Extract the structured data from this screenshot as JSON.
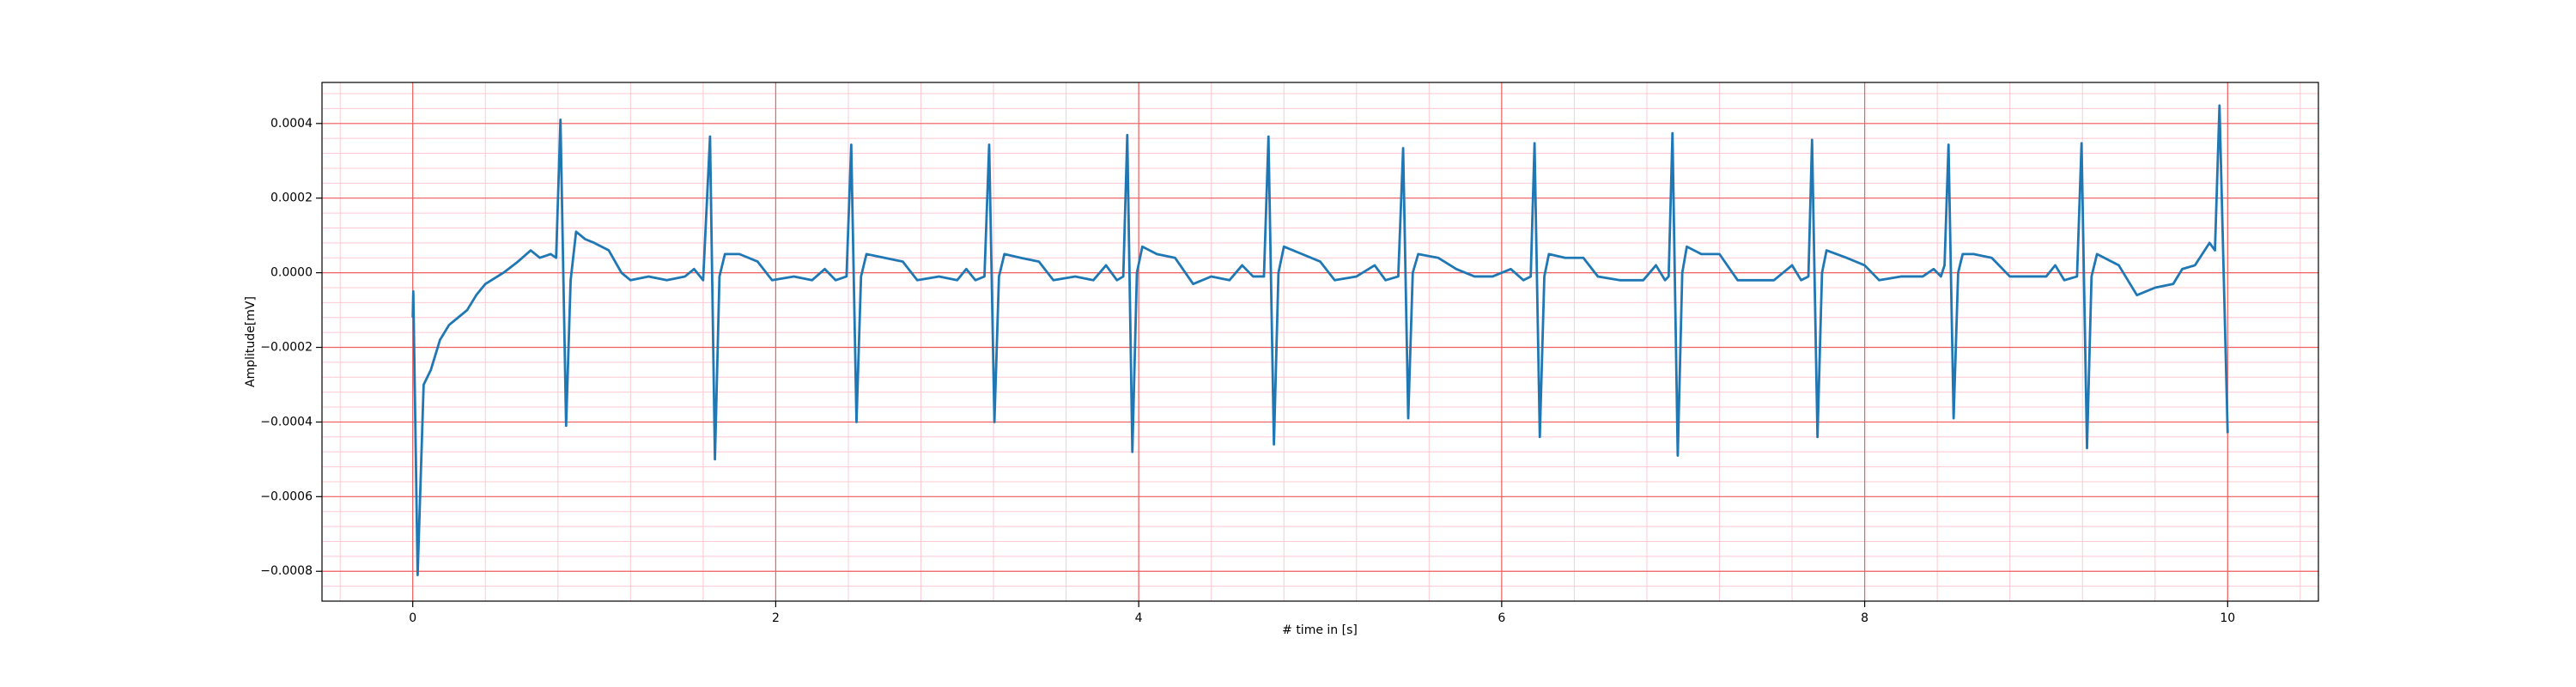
{
  "chart_data": {
    "type": "line",
    "xlabel": "# time in [s]",
    "ylabel": "Amplitude[mV]",
    "xlim": [
      -0.5,
      10.5
    ],
    "ylim": [
      -0.00088,
      0.00051
    ],
    "xticks": [
      0,
      2,
      4,
      6,
      8,
      10
    ],
    "yticks": [
      {
        "value": -0.0008,
        "label": "−0.0008"
      },
      {
        "value": -0.0006,
        "label": "−0.0006"
      },
      {
        "value": -0.0004,
        "label": "−0.0004"
      },
      {
        "value": -0.0002,
        "label": "−0.0002"
      },
      {
        "value": 0,
        "label": "0.0000"
      },
      0.0002,
      0.0004
    ],
    "grid": true,
    "grid_color": "#f06060",
    "minor_grid": true,
    "minor_grid_color": "#ffc8d2",
    "minor_per_major": 5,
    "series": [
      {
        "color": "#1f77b4",
        "x": [
          0,
          0.003,
          0.027,
          0.06,
          0.1,
          0.15,
          0.2,
          0.25,
          0.3,
          0.35,
          0.4,
          0.5,
          0.58,
          0.65,
          0.7,
          0.76,
          0.79,
          0.814,
          0.845,
          0.87,
          0.9,
          0.95,
          1.0,
          1.08,
          1.15,
          1.2,
          1.3,
          1.4,
          1.5,
          1.55,
          1.6,
          1.638,
          1.665,
          1.69,
          1.72,
          1.8,
          1.9,
          1.98,
          2.1,
          2.2,
          2.27,
          2.33,
          2.39,
          2.416,
          2.445,
          2.47,
          2.5,
          2.6,
          2.7,
          2.78,
          2.9,
          3.0,
          3.05,
          3.1,
          3.15,
          3.176,
          3.205,
          3.23,
          3.26,
          3.35,
          3.45,
          3.53,
          3.65,
          3.75,
          3.82,
          3.88,
          3.915,
          3.937,
          3.965,
          3.99,
          4.02,
          4.1,
          4.2,
          4.3,
          4.4,
          4.5,
          4.57,
          4.63,
          4.69,
          4.715,
          4.745,
          4.77,
          4.8,
          4.9,
          5.0,
          5.08,
          5.2,
          5.3,
          5.36,
          5.43,
          5.457,
          5.485,
          5.51,
          5.54,
          5.65,
          5.75,
          5.85,
          5.95,
          6.05,
          6.12,
          6.16,
          6.181,
          6.21,
          6.235,
          6.26,
          6.35,
          6.45,
          6.53,
          6.65,
          6.78,
          6.85,
          6.9,
          6.92,
          6.941,
          6.97,
          6.995,
          7.02,
          7.1,
          7.2,
          7.3,
          7.4,
          7.5,
          7.6,
          7.65,
          7.69,
          7.71,
          7.74,
          7.765,
          7.79,
          7.9,
          8.0,
          8.08,
          8.2,
          8.32,
          8.38,
          8.42,
          8.44,
          8.462,
          8.49,
          8.515,
          8.54,
          8.6,
          8.7,
          8.8,
          8.9,
          9.0,
          9.05,
          9.1,
          9.17,
          9.195,
          9.225,
          9.25,
          9.28,
          9.4,
          9.5,
          9.6,
          9.7,
          9.75,
          9.82,
          9.9,
          9.93,
          9.955,
          10.0
        ],
        "values": [
          -0.00012,
          -5e-05,
          -0.00081,
          -0.0003,
          -0.00026,
          -0.00018,
          -0.00014,
          -0.00012,
          -0.0001,
          -6e-05,
          -3e-05,
          0,
          3e-05,
          6e-05,
          4e-05,
          5e-05,
          4e-05,
          0.00041,
          -0.00041,
          -2e-05,
          0.00011,
          9e-05,
          8e-05,
          6e-05,
          0,
          -2e-05,
          -1e-05,
          -2e-05,
          -1e-05,
          1e-05,
          -2e-05,
          0.000365,
          -0.0005,
          -1e-05,
          5e-05,
          5e-05,
          3e-05,
          -2e-05,
          -1e-05,
          -2e-05,
          1e-05,
          -2e-05,
          -1e-05,
          0.000343,
          -0.0004,
          -1e-05,
          5e-05,
          4e-05,
          3e-05,
          -2e-05,
          -1e-05,
          -2e-05,
          1e-05,
          -2e-05,
          -1e-05,
          0.000343,
          -0.0004,
          -1e-05,
          5e-05,
          4e-05,
          3e-05,
          -2e-05,
          -1e-05,
          -2e-05,
          2e-05,
          -2e-05,
          -1e-05,
          0.000369,
          -0.00048,
          0,
          7e-05,
          5e-05,
          4e-05,
          -3e-05,
          -1e-05,
          -2e-05,
          2e-05,
          -1e-05,
          -1e-05,
          0.000365,
          -0.00046,
          0,
          7e-05,
          5e-05,
          3e-05,
          -2e-05,
          -1e-05,
          2e-05,
          -2e-05,
          -1e-05,
          0.000334,
          -0.00039,
          0,
          5e-05,
          4e-05,
          1e-05,
          -1e-05,
          -1e-05,
          1e-05,
          -2e-05,
          -1e-05,
          0.000347,
          -0.00044,
          -1e-05,
          5e-05,
          4e-05,
          4e-05,
          -1e-05,
          -2e-05,
          -2e-05,
          2e-05,
          -2e-05,
          -1e-05,
          0.000374,
          -0.00049,
          0,
          7e-05,
          5e-05,
          5e-05,
          -2e-05,
          -2e-05,
          -2e-05,
          2e-05,
          -2e-05,
          -1e-05,
          0.000356,
          -0.00044,
          0,
          6e-05,
          4e-05,
          2e-05,
          -2e-05,
          -1e-05,
          -1e-05,
          1e-05,
          -1e-05,
          2e-05,
          0.000343,
          -0.00039,
          0,
          5e-05,
          5e-05,
          4e-05,
          -1e-05,
          -1e-05,
          -1e-05,
          2e-05,
          -2e-05,
          -1e-05,
          0.000347,
          -0.00047,
          -1e-05,
          5e-05,
          2e-05,
          -6e-05,
          -4e-05,
          -3e-05,
          1e-05,
          2e-05,
          8e-05,
          6e-05,
          0.000448,
          -0.00043
        ]
      }
    ]
  }
}
